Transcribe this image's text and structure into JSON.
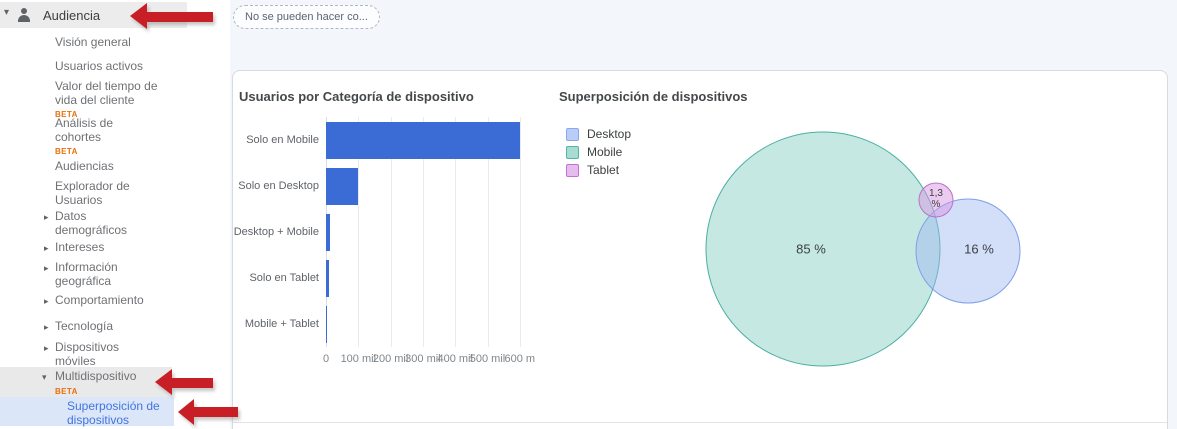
{
  "sidebar": {
    "header": {
      "label": "Audiencia"
    },
    "items": [
      {
        "label": "Visión general"
      },
      {
        "label": "Usuarios activos"
      },
      {
        "label": "Valor del tiempo de vida del cliente",
        "beta": "BETA"
      },
      {
        "label": "Análisis de cohortes",
        "beta": "BETA"
      },
      {
        "label": "Audiencias"
      },
      {
        "label": "Explorador de Usuarios"
      },
      {
        "label": "Datos demográficos",
        "expandable": true
      },
      {
        "label": "Intereses",
        "expandable": true
      },
      {
        "label": "Información geográfica",
        "expandable": true
      },
      {
        "label": "Comportamiento",
        "expandable": true
      },
      {
        "label": "Tecnología",
        "expandable": true
      },
      {
        "label": "Dispositivos móviles",
        "expandable": true
      },
      {
        "label": "Multidispositivo",
        "beta": "BETA",
        "state": "expanded",
        "highlighted": true
      },
      {
        "label": "Superposición de dispositivos",
        "active": true
      }
    ]
  },
  "toolbar": {
    "notice_pill": "No se pueden hacer co..."
  },
  "chart_data": [
    {
      "type": "bar",
      "title": "Usuarios por Categoría de dispositivo",
      "orientation": "horizontal",
      "categories": [
        "Solo en Mobile",
        "Solo en Desktop",
        "Desktop + Mobile",
        "Solo en Tablet",
        "Mobile + Tablet"
      ],
      "values": [
        600000,
        100000,
        13000,
        10000,
        1000
      ],
      "x_tick_labels": [
        "0",
        "100 mil",
        "200 mil",
        "300 mil",
        "400 mil",
        "500 mil",
        "600 m"
      ],
      "x_tick_values": [
        0,
        100000,
        200000,
        300000,
        400000,
        500000,
        600000
      ],
      "xlim": [
        0,
        620000
      ],
      "xlabel": "",
      "ylabel": "",
      "grid": true,
      "bar_color": "#3b6bd5"
    },
    {
      "type": "venn",
      "title": "Superposición de dispositivos",
      "legend": [
        {
          "label": "Desktop",
          "fill": "#b9cdf8",
          "border": "#88a7ee"
        },
        {
          "label": "Mobile",
          "fill": "#a8dbd1",
          "border": "#55b3a6"
        },
        {
          "label": "Tablet",
          "fill": "#e6bcee",
          "border": "#c272d2"
        }
      ],
      "circles": [
        {
          "name": "Mobile",
          "fill": "#7fccc0",
          "stroke": "#4dafa2"
        },
        {
          "name": "Desktop",
          "fill": "#9db8f0",
          "stroke": "#7f9fe8"
        },
        {
          "name": "Tablet",
          "fill": "#d898e2",
          "stroke": "#bb6fcb"
        }
      ],
      "sets": [
        {
          "name": "Mobile",
          "percent_label": "85 %",
          "percent": 85
        },
        {
          "name": "Desktop",
          "percent_label": "16 %",
          "percent": 16
        },
        {
          "name": "Tablet",
          "percent_label": "1,3 %",
          "percent": 1.3
        }
      ]
    }
  ],
  "annotations": {
    "arrow_color": "#c81e25",
    "arrows": [
      {
        "points_at": "Audiencia"
      },
      {
        "points_at": "Multidispositivo"
      },
      {
        "points_at": "Superposición de dispositivos"
      }
    ]
  }
}
